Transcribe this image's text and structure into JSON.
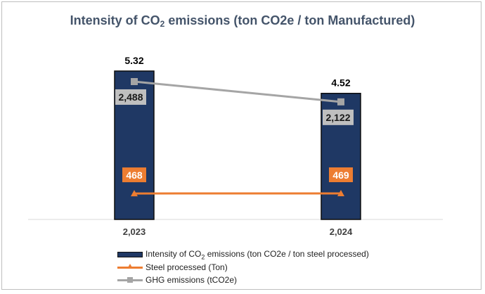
{
  "chart_data": {
    "type": "bar",
    "title_prefix": "Intensity of CO",
    "title_sub": "2",
    "title_suffix": " emissions (ton CO2e / ton Manufactured)",
    "categories": [
      "2,023",
      "2,024"
    ],
    "series": [
      {
        "name_prefix": "Intensity of CO",
        "name_sub": "2",
        "name_suffix": " emissions (ton CO2e / ton steel processed)",
        "kind": "bar",
        "values": [
          5.32,
          4.52
        ],
        "labels": [
          "5.32",
          "4.52"
        ],
        "color": "#1f3864"
      },
      {
        "name": "Steel processed (Ton)",
        "kind": "line",
        "marker": "triangle",
        "values": [
          468,
          469
        ],
        "labels": [
          "468",
          "469"
        ],
        "color": "#ed7d31"
      },
      {
        "name": "GHG emissions (tCO2e)",
        "kind": "line",
        "marker": "square",
        "values": [
          2488,
          2122
        ],
        "labels": [
          "2,488",
          "2,122"
        ],
        "color": "#a5a5a5"
      }
    ],
    "legend_position": "bottom",
    "grid": false
  }
}
